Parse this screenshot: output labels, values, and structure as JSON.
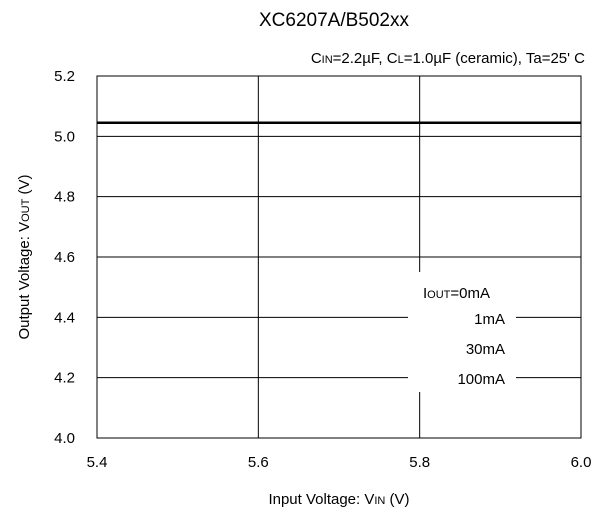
{
  "chart_data": {
    "type": "line",
    "title": "XC6207A/B502xx",
    "subtitle": "CIN=2.2µF, CL=1.0µF (ceramic), Ta=25' C",
    "subtitle_parts": {
      "cin_main": "C",
      "cin_sub": "IN",
      "cin_value": "=2.2µF, C",
      "cl_sub": "L",
      "rest": "=1.0µF (ceramic), Ta=25' C"
    },
    "xlabel": "Input Voltage: VIN (V)",
    "xlabel_parts": {
      "pre": "Input Voltage: V",
      "sub": "IN",
      "post": " (V)"
    },
    "ylabel": "Output Voltage: VOUT (V)",
    "ylabel_parts": {
      "pre": "Output Voltage: V",
      "sub": "OUT",
      "post": " (V)"
    },
    "xlim": [
      5.4,
      6.0
    ],
    "ylim": [
      4.0,
      5.2
    ],
    "x_ticks": [
      "5.4",
      "5.6",
      "5.8",
      "6.0"
    ],
    "y_ticks": [
      "4.0",
      "4.2",
      "4.4",
      "4.6",
      "4.8",
      "5.0",
      "5.2"
    ],
    "grid": true,
    "legend_position": "lower-right, inside plot",
    "legend_title_parts": {
      "pre": "I",
      "sub": "OUT",
      "post": "=0mA"
    },
    "series": [
      {
        "name": "IOUT=0mA",
        "x": [
          5.4,
          6.0
        ],
        "y": [
          5.045,
          5.045
        ]
      },
      {
        "name": "1mA",
        "x": [
          5.4,
          6.0
        ],
        "y": [
          5.045,
          5.045
        ]
      },
      {
        "name": "30mA",
        "x": [
          5.4,
          6.0
        ],
        "y": [
          5.045,
          5.045
        ]
      },
      {
        "name": "100mA",
        "x": [
          5.4,
          6.0
        ],
        "y": [
          5.045,
          5.045
        ]
      }
    ],
    "legend_labels": [
      "1mA",
      "30mA",
      "100mA"
    ]
  },
  "colors": {
    "axis": "#000000",
    "grid": "#000000",
    "series": "#000000",
    "background": "#ffffff"
  }
}
